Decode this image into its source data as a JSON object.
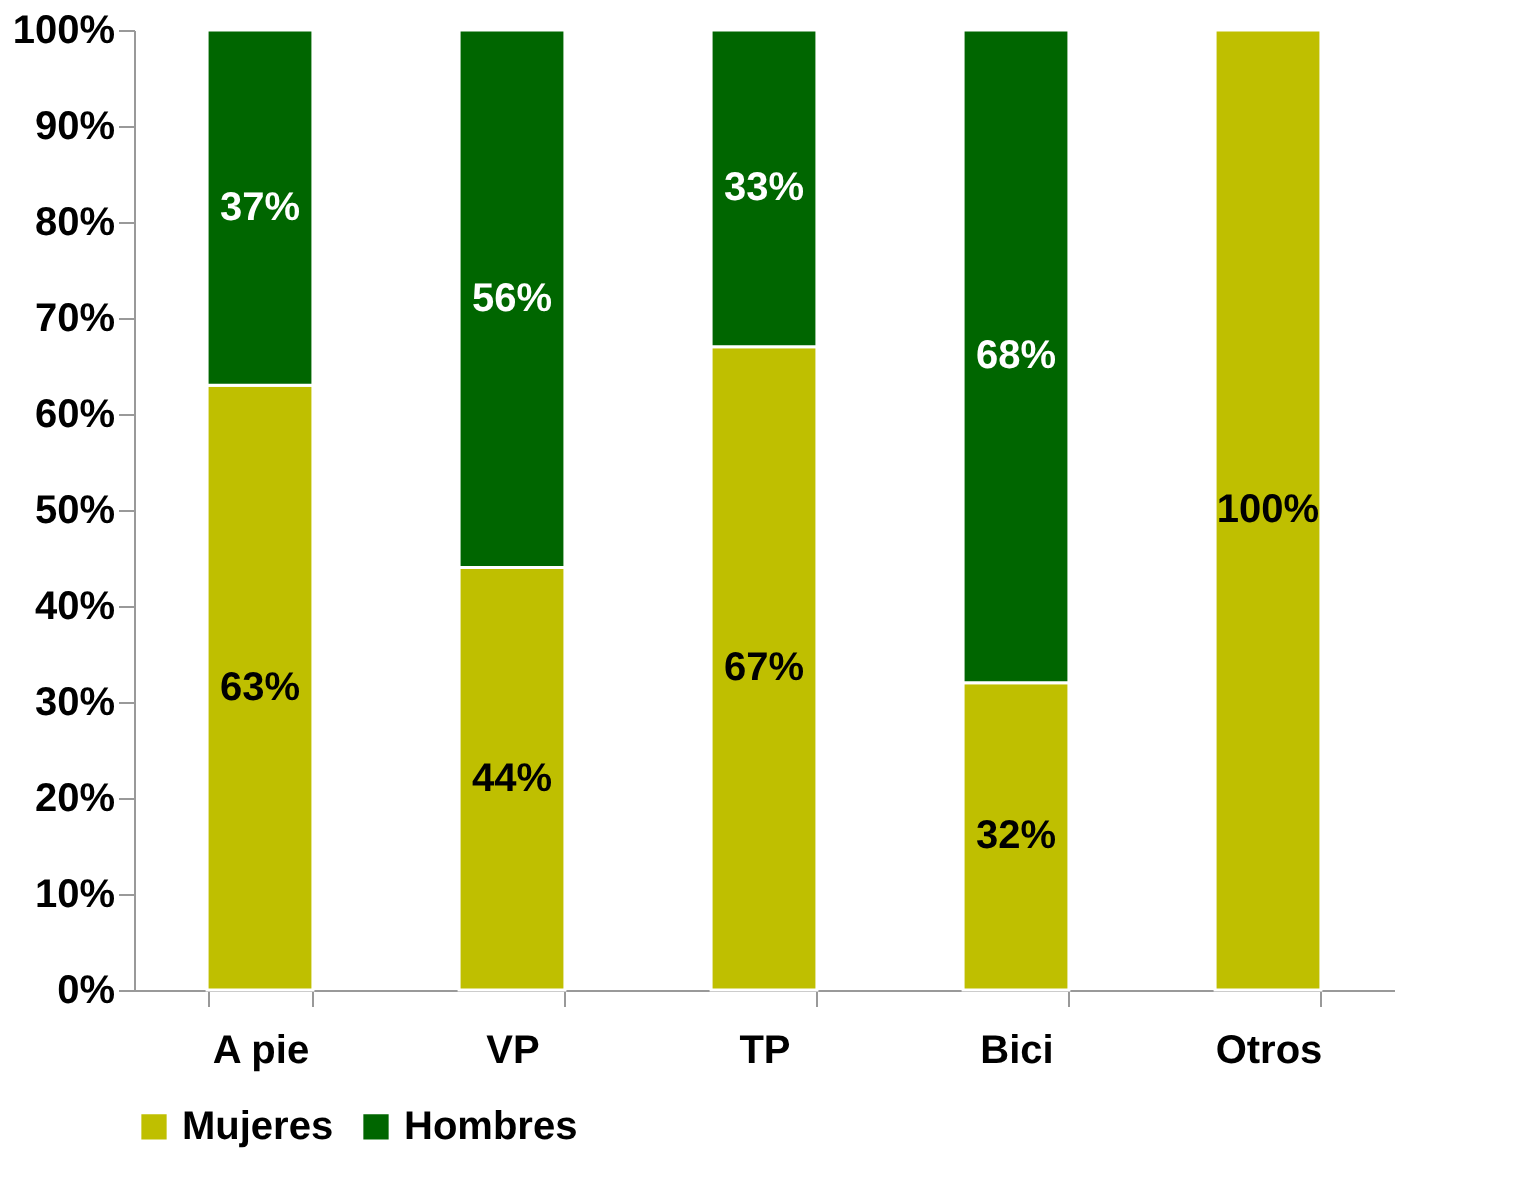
{
  "chart_data": {
    "type": "bar",
    "stacked": true,
    "categories": [
      "A pie",
      "VP",
      "TP",
      "Bici",
      "Otros"
    ],
    "series": [
      {
        "name": "Mujeres",
        "color": "#bfbf00",
        "values": [
          63,
          44,
          67,
          32,
          100
        ],
        "value_labels": [
          "63%",
          "44%",
          "67%",
          "32%",
          "100%"
        ]
      },
      {
        "name": "Hombres",
        "color": "#006600",
        "values": [
          37,
          56,
          33,
          68,
          0
        ],
        "value_labels": [
          "37%",
          "56%",
          "33%",
          "68%",
          null
        ]
      }
    ],
    "ylim": [
      0,
      100
    ],
    "yticks": [
      {
        "value": 0,
        "label": "0%"
      },
      {
        "value": 10,
        "label": "10%"
      },
      {
        "value": 20,
        "label": "20%"
      },
      {
        "value": 30,
        "label": "30%"
      },
      {
        "value": 40,
        "label": "40%"
      },
      {
        "value": 50,
        "label": "50%"
      },
      {
        "value": 60,
        "label": "60%"
      },
      {
        "value": 70,
        "label": "70%"
      },
      {
        "value": 80,
        "label": "80%"
      },
      {
        "value": 90,
        "label": "90%"
      },
      {
        "value": 100,
        "label": "100%"
      }
    ],
    "grid": false,
    "legend": "bottom"
  }
}
